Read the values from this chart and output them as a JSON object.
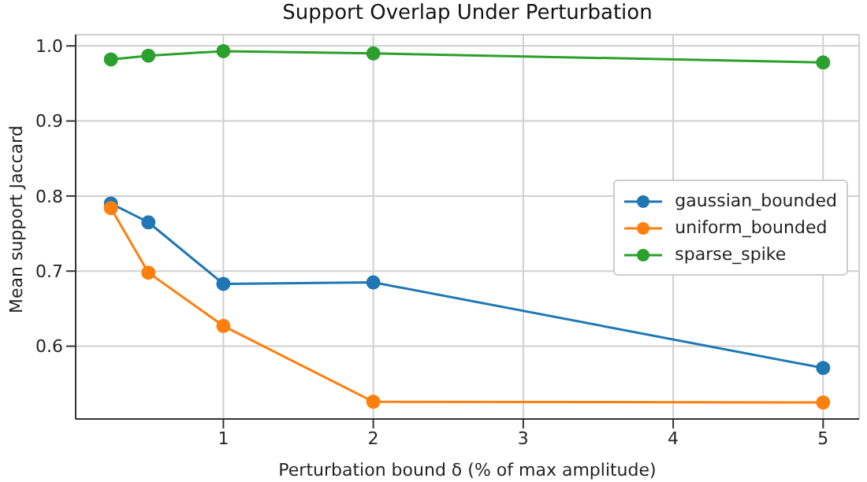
{
  "chart_data": {
    "type": "line",
    "title": "Support Overlap Under Perturbation",
    "xlabel": "Perturbation bound δ (% of max amplitude)",
    "ylabel": "Mean support Jaccard",
    "x": [
      0.25,
      0.5,
      1,
      2,
      5
    ],
    "series": [
      {
        "name": "gaussian_bounded",
        "color": "#1f77b4",
        "values": [
          0.79,
          0.765,
          0.683,
          0.685,
          0.571
        ]
      },
      {
        "name": "uniform_bounded",
        "color": "#ff7f0e",
        "values": [
          0.784,
          0.698,
          0.627,
          0.526,
          0.525
        ]
      },
      {
        "name": "sparse_spike",
        "color": "#2ca02c",
        "values": [
          0.982,
          0.987,
          0.993,
          0.99,
          0.978
        ]
      }
    ],
    "xlim": [
      0.015,
      5.24
    ],
    "xticks": [
      1,
      2,
      3,
      4,
      5
    ],
    "ylim": [
      0.503,
      1.015
    ],
    "yticks": [
      0.6,
      0.7,
      0.8,
      0.9,
      {
        "value": 1,
        "label": "1.0"
      }
    ],
    "grid": true,
    "legend": "right",
    "marker": "circle",
    "line_style": "solid"
  }
}
